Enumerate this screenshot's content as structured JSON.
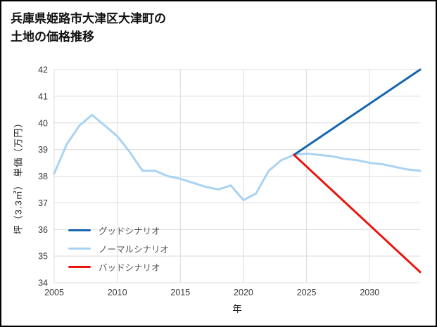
{
  "chart_data": {
    "type": "line",
    "title": "兵庫県姫路市大津区大津町の\n土地の価格推移",
    "xlabel": "年",
    "ylabel": "坪（3.3㎡） 単価（万円）",
    "xlim": [
      2005,
      2034
    ],
    "ylim": [
      34,
      42
    ],
    "xticks": [
      2005,
      2010,
      2015,
      2020,
      2025,
      2030
    ],
    "yticks": [
      34,
      35,
      36,
      37,
      38,
      39,
      40,
      41,
      42
    ],
    "grid": true,
    "legend_position": "lower left",
    "series": [
      {
        "name": "グッドシナリオ",
        "color": "#1766b0",
        "x": [
          2024,
          2034
        ],
        "y": [
          38.8,
          42.0
        ]
      },
      {
        "name": "ノーマルシナリオ",
        "color": "#a9d3f2",
        "x": [
          2005,
          2006,
          2007,
          2008,
          2009,
          2010,
          2011,
          2012,
          2013,
          2014,
          2015,
          2016,
          2017,
          2018,
          2019,
          2020,
          2021,
          2022,
          2023,
          2024,
          2025,
          2026,
          2027,
          2028,
          2029,
          2030,
          2031,
          2032,
          2033,
          2034
        ],
        "y": [
          38.1,
          39.2,
          39.9,
          40.3,
          39.9,
          39.5,
          38.9,
          38.2,
          38.2,
          38.0,
          37.9,
          37.75,
          37.6,
          37.5,
          37.65,
          37.1,
          37.35,
          38.2,
          38.6,
          38.8,
          38.85,
          38.8,
          38.75,
          38.65,
          38.6,
          38.5,
          38.45,
          38.35,
          38.25,
          38.2
        ]
      },
      {
        "name": "バッドシナリオ",
        "color": "#e8150f",
        "x": [
          2024,
          2034
        ],
        "y": [
          38.8,
          34.4
        ]
      }
    ]
  }
}
